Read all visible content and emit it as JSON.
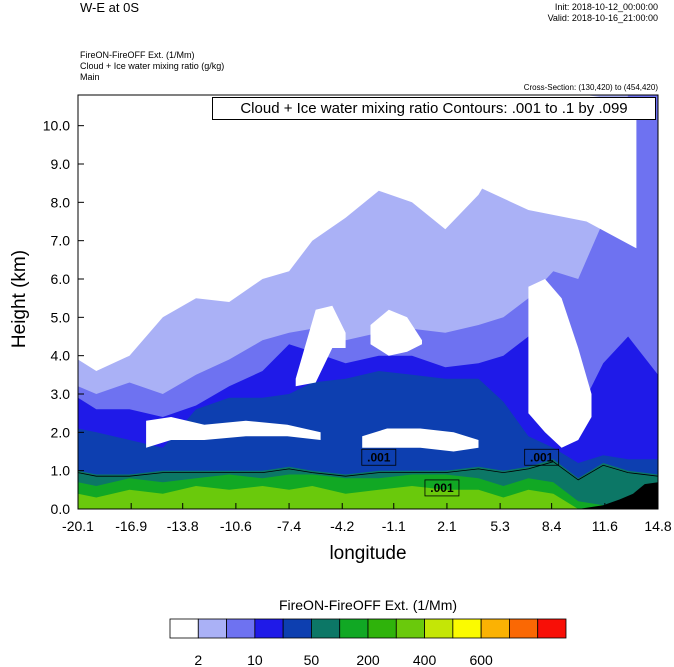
{
  "header": {
    "title": "W-E at 0S",
    "init": "Init: 2018-10-12_00:00:00",
    "valid": "Valid: 2018-10-16_21:00:00",
    "field1": "FireON-FireOFF Ext.   (1/Mm)",
    "field2": "Cloud + Ice water mixing ratio   (g/kg)",
    "field3": "Main",
    "cross_section": "Cross-Section: (130,420) to (454,420)"
  },
  "chart_data": {
    "type": "heatmap",
    "title": "",
    "contour_info": "Cloud + Ice water mixing ratio Contours: .001 to .1 by .099",
    "xlabel": "longitude",
    "ylabel": "Height (km)",
    "xlim": [
      -20.1,
      14.8
    ],
    "ylim": [
      0.0,
      10.8
    ],
    "xticks": [
      "-20.1",
      "-16.9",
      "-13.8",
      "-10.6",
      "-7.4",
      "-4.2",
      "-1.1",
      "2.1",
      "5.3",
      "8.4",
      "11.6",
      "14.8"
    ],
    "yticks": [
      "0.0",
      "1.0",
      "2.0",
      "3.0",
      "4.0",
      "5.0",
      "6.0",
      "7.0",
      "8.0",
      "9.0",
      "10.0"
    ],
    "contour_labels": [
      {
        "text": ".001",
        "x": -2.0,
        "y": 1.35
      },
      {
        "text": ".001",
        "x": 1.8,
        "y": 0.55
      },
      {
        "text": ".001",
        "x": 7.8,
        "y": 1.35
      }
    ],
    "colorbar": {
      "title": "FireON-FireOFF Ext.  (1/Mm)",
      "colors": [
        "#ffffff",
        "#aab1f6",
        "#6e72f1",
        "#1f1ae8",
        "#0d3fb0",
        "#0c7766",
        "#11a824",
        "#2fb30b",
        "#6ac90c",
        "#c4e606",
        "#fbfb00",
        "#fbb203",
        "#fa6804",
        "#f80f07"
      ],
      "labels": [
        "2",
        "10",
        "50",
        "200",
        "400",
        "600"
      ]
    },
    "bands": [
      {
        "name": "light",
        "x": [
          -20.1,
          -19,
          -17,
          -15,
          -13,
          -11,
          -9,
          -7.4,
          -6,
          -4,
          -2,
          0,
          2,
          4,
          5.5,
          7,
          8.5,
          10,
          11.5,
          13,
          14.8
        ],
        "y": [
          3.9,
          3.6,
          4.0,
          5.0,
          5.5,
          5.4,
          6.0,
          6.2,
          7.0,
          7.6,
          8.3,
          8.0,
          7.3,
          8.2,
          9.3,
          9.4,
          10.1,
          10.8,
          10.8,
          10.8,
          10.8
        ]
      },
      {
        "name": "medium",
        "x": [
          -20.1,
          -19,
          -17,
          -15,
          -13,
          -11,
          -9,
          -7.4,
          -6,
          -4,
          -2,
          0,
          2,
          4,
          5.5,
          7,
          8.5,
          10,
          11.5,
          13,
          14.8
        ],
        "y": [
          3.2,
          3.0,
          3.3,
          3.0,
          3.5,
          3.9,
          4.4,
          4.6,
          4.7,
          4.4,
          4.6,
          4.7,
          4.6,
          4.8,
          5.0,
          5.5,
          6.2,
          6.0,
          7.5,
          10.8,
          10.8
        ]
      },
      {
        "name": "blue",
        "x": [
          -20.1,
          -19,
          -17,
          -15,
          -13,
          -11,
          -9,
          -7.4,
          -6,
          -4,
          -2,
          0,
          2,
          4,
          5.5,
          7,
          8.5,
          10,
          11.5,
          13,
          14.8
        ],
        "y": [
          2.9,
          2.6,
          2.6,
          2.4,
          2.7,
          3.2,
          3.6,
          4.3,
          4.1,
          3.8,
          4.0,
          4.0,
          3.7,
          3.8,
          4.0,
          4.5,
          3.2,
          2.5,
          3.8,
          4.5,
          3.5
        ]
      },
      {
        "name": "dark",
        "x": [
          -20.1,
          -19,
          -17,
          -15,
          -13,
          -11,
          -9,
          -7.4,
          -6,
          -4,
          -2,
          0,
          2,
          4,
          5.5,
          7,
          8.5,
          10,
          11.5,
          13,
          14.8
        ],
        "y": [
          2.1,
          2.0,
          1.8,
          1.6,
          2.6,
          2.9,
          2.9,
          3.0,
          3.3,
          3.4,
          3.6,
          3.5,
          3.4,
          3.4,
          2.8,
          1.9,
          1.6,
          1.2,
          1.4,
          1.3,
          1.3
        ]
      },
      {
        "name": "teal",
        "x": [
          -20.1,
          -19,
          -17,
          -15,
          -13,
          -11,
          -9,
          -7.4,
          -6,
          -4,
          -2,
          0,
          2,
          4,
          5.5,
          7,
          8.5,
          10,
          11.5,
          13,
          14.8
        ],
        "y": [
          1.0,
          0.9,
          0.9,
          1.0,
          1.0,
          1.0,
          1.0,
          1.1,
          1.0,
          0.9,
          1.0,
          1.0,
          1.0,
          1.1,
          1.0,
          1.1,
          1.3,
          0.8,
          1.2,
          1.0,
          0.9
        ]
      },
      {
        "name": "green",
        "x": [
          -20.1,
          -19,
          -17,
          -15,
          -13,
          -11,
          -9,
          -7.4,
          -6,
          -4,
          -2,
          0,
          2,
          4,
          5.5,
          7,
          8.5,
          10,
          11.5,
          13,
          14.8
        ],
        "y": [
          0.7,
          0.6,
          0.8,
          0.7,
          0.8,
          0.9,
          0.8,
          0.9,
          0.9,
          0.8,
          0.8,
          0.9,
          0.9,
          0.8,
          0.6,
          0.8,
          0.7,
          0.2,
          0.1,
          0.0,
          0.0
        ]
      },
      {
        "name": "lightgreen",
        "x": [
          -20.1,
          -19,
          -17,
          -15,
          -13,
          -11,
          -9,
          -7.4,
          -6,
          -4,
          -2,
          0,
          2,
          4,
          5.5,
          7,
          8.5,
          10,
          11.5,
          13,
          14.8
        ],
        "y": [
          0.4,
          0.3,
          0.5,
          0.4,
          0.6,
          0.5,
          0.6,
          0.5,
          0.6,
          0.4,
          0.5,
          0.6,
          0.5,
          0.5,
          0.3,
          0.5,
          0.4,
          0.0,
          0.0,
          0.0,
          0.0
        ]
      }
    ],
    "cloud_holes": [
      {
        "x": [
          -16.0,
          -14.5,
          -12.5,
          -10.0,
          -7.5,
          -5.5
        ],
        "top": [
          2.3,
          2.4,
          2.2,
          2.3,
          2.2,
          2.0
        ],
        "bottom": [
          1.6,
          1.8,
          1.8,
          1.9,
          1.9,
          1.8
        ]
      },
      {
        "x": [
          -3.0,
          -1.5,
          0.5,
          2.5,
          4.0
        ],
        "top": [
          1.9,
          2.1,
          2.1,
          2.0,
          1.8
        ],
        "bottom": [
          1.6,
          1.6,
          1.6,
          1.5,
          1.6
        ]
      },
      {
        "x": [
          7.0,
          8.0,
          9.0,
          10.0,
          10.8
        ],
        "top": [
          5.8,
          6.0,
          5.5,
          4.2,
          3.0
        ],
        "bottom": [
          2.5,
          2.0,
          1.6,
          1.8,
          2.4
        ]
      },
      {
        "x": [
          -7.0,
          -5.8,
          -4.8,
          -4.0
        ],
        "top": [
          3.4,
          5.2,
          5.3,
          4.6
        ],
        "bottom": [
          3.2,
          3.3,
          4.2,
          4.2
        ]
      },
      {
        "x": [
          -2.5,
          -1.4,
          -0.3,
          0.6
        ],
        "top": [
          4.8,
          5.2,
          5.0,
          4.4
        ],
        "bottom": [
          4.3,
          4.0,
          4.1,
          4.3
        ]
      },
      {
        "x": [
          -8.0,
          -3.0,
          3.0,
          7.0,
          10.5,
          13.5
        ],
        "top": [
          10.6,
          10.8,
          10.8,
          10.8,
          10.8,
          10.6
        ],
        "bottom": [
          9.8,
          9.0,
          8.6,
          7.8,
          7.5,
          6.8
        ]
      }
    ],
    "terrain": {
      "x": [
        10.0,
        11.5,
        12.5,
        13.3,
        14.0,
        14.8
      ],
      "y": [
        0.0,
        0.1,
        0.25,
        0.4,
        0.65,
        0.7
      ]
    }
  }
}
